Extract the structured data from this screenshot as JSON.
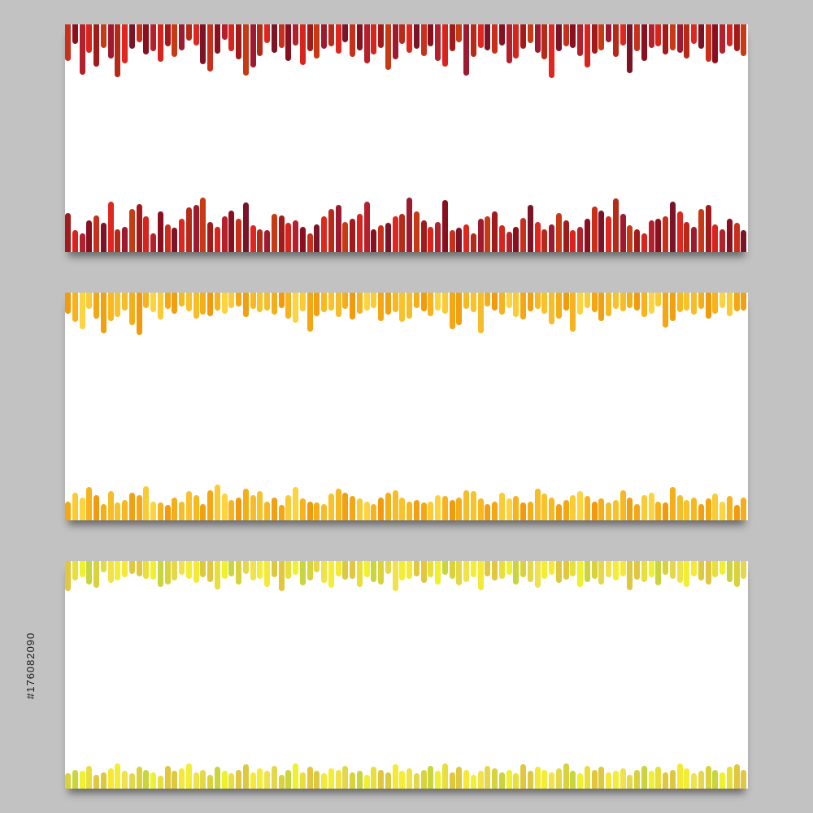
{
  "stock_id": "#176082090",
  "banners": [
    {
      "id": "red",
      "palette": [
        "#8a1020",
        "#a31a1a",
        "#b82a18",
        "#c8301c",
        "#d8241c",
        "#9e1a30",
        "#7a1426",
        "#b4202c",
        "#c73a14",
        "#e0261e"
      ],
      "top_levels": [
        0.62,
        0.34,
        0.86,
        0.48,
        0.72,
        0.4,
        0.58,
        0.9,
        0.66,
        0.42,
        0.3,
        0.52,
        0.46,
        0.64,
        0.38,
        0.56,
        0.44,
        0.28,
        0.36,
        0.68,
        0.8,
        0.5,
        0.26,
        0.46,
        0.6,
        0.88,
        0.74,
        0.54,
        0.32,
        0.48,
        0.4,
        0.62,
        0.36,
        0.7,
        0.46,
        0.58,
        0.42,
        0.38,
        0.5,
        0.3,
        0.56,
        0.44,
        0.66,
        0.52,
        0.4,
        0.78,
        0.6,
        0.34,
        0.48,
        0.42,
        0.54,
        0.38,
        0.62,
        0.72,
        0.46,
        0.3,
        0.88,
        0.56,
        0.4,
        0.44,
        0.5,
        0.36,
        0.66,
        0.58,
        0.42,
        0.32,
        0.48,
        0.6,
        0.92,
        0.46,
        0.38,
        0.4,
        0.54,
        0.74,
        0.5,
        0.44,
        0.3,
        0.56,
        0.36,
        0.84,
        0.46,
        0.62,
        0.4,
        0.38,
        0.52,
        0.44,
        0.48,
        0.58,
        0.34,
        0.42,
        0.64,
        0.66,
        0.5,
        0.38,
        0.46,
        0.54
      ],
      "bottom_levels": [
        0.62,
        0.34,
        0.3,
        0.5,
        0.58,
        0.46,
        0.8,
        0.36,
        0.4,
        0.68,
        0.76,
        0.56,
        0.3,
        0.64,
        0.44,
        0.38,
        0.52,
        0.7,
        0.74,
        0.86,
        0.48,
        0.4,
        0.56,
        0.66,
        0.52,
        0.78,
        0.42,
        0.36,
        0.34,
        0.6,
        0.58,
        0.46,
        0.5,
        0.4,
        0.3,
        0.44,
        0.56,
        0.68,
        0.74,
        0.48,
        0.52,
        0.6,
        0.8,
        0.36,
        0.42,
        0.46,
        0.56,
        0.6,
        0.86,
        0.64,
        0.5,
        0.4,
        0.48,
        0.82,
        0.34,
        0.38,
        0.44,
        0.3,
        0.52,
        0.56,
        0.64,
        0.42,
        0.32,
        0.4,
        0.54,
        0.74,
        0.48,
        0.36,
        0.44,
        0.62,
        0.5,
        0.34,
        0.4,
        0.52,
        0.72,
        0.66,
        0.56,
        0.84,
        0.6,
        0.42,
        0.36,
        0.3,
        0.5,
        0.52,
        0.56,
        0.8,
        0.64,
        0.48,
        0.4,
        0.68,
        0.74,
        0.44,
        0.36,
        0.52,
        0.46,
        0.34
      ]
    },
    {
      "id": "orange",
      "palette": [
        "#f7b21e",
        "#f5a713",
        "#f9c22a",
        "#f29a0c",
        "#fbcb35",
        "#f8b820",
        "#f4ae17",
        "#fdd33e",
        "#f0a010",
        "#f6bd2a"
      ],
      "top_levels": [
        0.36,
        0.5,
        0.62,
        0.28,
        0.44,
        0.7,
        0.48,
        0.42,
        0.3,
        0.56,
        0.72,
        0.26,
        0.34,
        0.46,
        0.28,
        0.36,
        0.24,
        0.32,
        0.44,
        0.38,
        0.4,
        0.3,
        0.36,
        0.26,
        0.24,
        0.42,
        0.28,
        0.34,
        0.3,
        0.38,
        0.26,
        0.44,
        0.52,
        0.32,
        0.66,
        0.4,
        0.34,
        0.3,
        0.42,
        0.28,
        0.46,
        0.36,
        0.3,
        0.26,
        0.48,
        0.38,
        0.34,
        0.5,
        0.44,
        0.26,
        0.32,
        0.4,
        0.3,
        0.36,
        0.62,
        0.56,
        0.28,
        0.34,
        0.7,
        0.24,
        0.3,
        0.38,
        0.26,
        0.42,
        0.46,
        0.32,
        0.28,
        0.36,
        0.54,
        0.44,
        0.3,
        0.66,
        0.38,
        0.26,
        0.34,
        0.48,
        0.4,
        0.28,
        0.32,
        0.26,
        0.3,
        0.42,
        0.36,
        0.24,
        0.6,
        0.48,
        0.34,
        0.3,
        0.38,
        0.28,
        0.44,
        0.36,
        0.26,
        0.4,
        0.32,
        0.3
      ],
      "bottom_levels": [
        0.3,
        0.44,
        0.36,
        0.52,
        0.4,
        0.26,
        0.46,
        0.28,
        0.32,
        0.44,
        0.4,
        0.54,
        0.3,
        0.28,
        0.24,
        0.36,
        0.3,
        0.46,
        0.4,
        0.26,
        0.48,
        0.56,
        0.42,
        0.32,
        0.36,
        0.5,
        0.4,
        0.46,
        0.3,
        0.36,
        0.24,
        0.4,
        0.52,
        0.34,
        0.3,
        0.28,
        0.26,
        0.42,
        0.5,
        0.44,
        0.38,
        0.34,
        0.3,
        0.26,
        0.36,
        0.44,
        0.48,
        0.36,
        0.3,
        0.32,
        0.28,
        0.3,
        0.4,
        0.38,
        0.32,
        0.36,
        0.48,
        0.46,
        0.34,
        0.26,
        0.3,
        0.44,
        0.34,
        0.38,
        0.28,
        0.3,
        0.5,
        0.42,
        0.36,
        0.26,
        0.32,
        0.4,
        0.46,
        0.38,
        0.3,
        0.34,
        0.28,
        0.32,
        0.48,
        0.36,
        0.26,
        0.4,
        0.44,
        0.3,
        0.28,
        0.52,
        0.4,
        0.32,
        0.36,
        0.26,
        0.34,
        0.42,
        0.3,
        0.38,
        0.24,
        0.36
      ]
    },
    {
      "id": "yellow",
      "palette": [
        "#e8df3a",
        "#d9d23b",
        "#f3ee34",
        "#e1c63e",
        "#c9d53d",
        "#f0e24a",
        "#dcc93f",
        "#eef12b",
        "#e4d84a",
        "#f6e936"
      ],
      "top_levels": [
        0.52,
        0.34,
        0.28,
        0.4,
        0.46,
        0.2,
        0.38,
        0.34,
        0.28,
        0.22,
        0.26,
        0.3,
        0.32,
        0.44,
        0.4,
        0.34,
        0.24,
        0.3,
        0.38,
        0.28,
        0.36,
        0.48,
        0.3,
        0.26,
        0.4,
        0.22,
        0.34,
        0.3,
        0.44,
        0.28,
        0.52,
        0.3,
        0.24,
        0.42,
        0.34,
        0.2,
        0.38,
        0.46,
        0.26,
        0.32,
        0.3,
        0.44,
        0.28,
        0.36,
        0.4,
        0.22,
        0.52,
        0.34,
        0.3,
        0.26,
        0.38,
        0.28,
        0.4,
        0.24,
        0.3,
        0.42,
        0.36,
        0.28,
        0.5,
        0.26,
        0.34,
        0.3,
        0.24,
        0.4,
        0.28,
        0.36,
        0.46,
        0.3,
        0.24,
        0.38,
        0.32,
        0.26,
        0.44,
        0.36,
        0.3,
        0.4,
        0.28,
        0.34,
        0.26,
        0.5,
        0.32,
        0.36,
        0.28,
        0.42,
        0.24,
        0.3,
        0.38,
        0.44,
        0.26,
        0.34,
        0.4,
        0.28,
        0.24,
        0.36,
        0.44,
        0.3
      ],
      "bottom_levels": [
        0.24,
        0.3,
        0.28,
        0.36,
        0.22,
        0.26,
        0.32,
        0.4,
        0.28,
        0.24,
        0.34,
        0.3,
        0.26,
        0.2,
        0.36,
        0.28,
        0.32,
        0.4,
        0.26,
        0.3,
        0.22,
        0.34,
        0.28,
        0.24,
        0.3,
        0.38,
        0.26,
        0.32,
        0.28,
        0.36,
        0.22,
        0.3,
        0.4,
        0.26,
        0.34,
        0.28,
        0.24,
        0.32,
        0.3,
        0.36,
        0.26,
        0.28,
        0.22,
        0.34,
        0.3,
        0.26,
        0.38,
        0.28,
        0.32,
        0.24,
        0.3,
        0.36,
        0.28,
        0.4,
        0.26,
        0.34,
        0.3,
        0.22,
        0.28,
        0.36,
        0.32,
        0.26,
        0.3,
        0.24,
        0.38,
        0.28,
        0.34,
        0.3,
        0.26,
        0.32,
        0.4,
        0.28,
        0.24,
        0.36,
        0.3,
        0.34,
        0.26,
        0.28,
        0.32,
        0.22,
        0.3,
        0.36,
        0.28,
        0.34,
        0.26,
        0.3,
        0.4,
        0.32,
        0.24,
        0.28,
        0.36,
        0.3,
        0.26,
        0.34,
        0.38,
        0.3
      ]
    }
  ]
}
